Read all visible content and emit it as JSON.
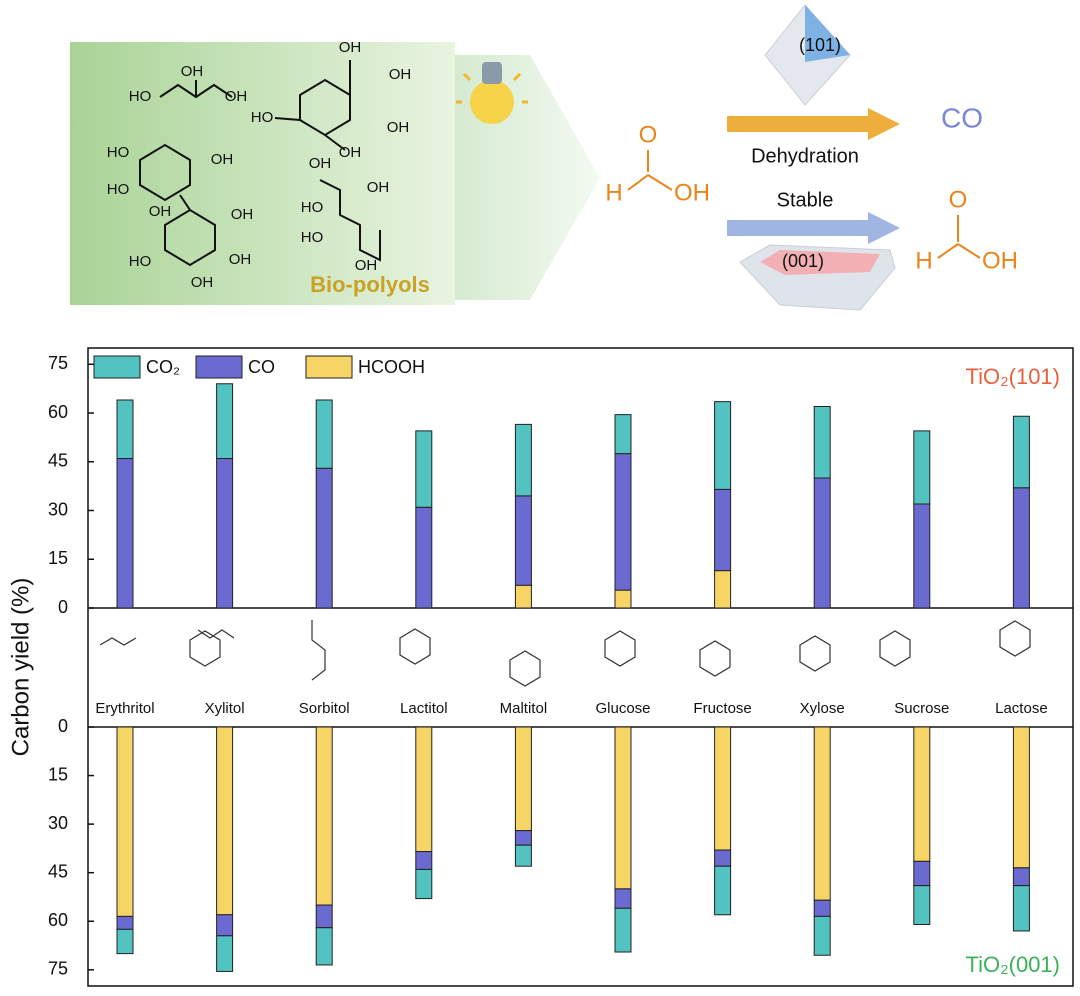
{
  "schematic": {
    "bio_label": "Bio-polyols",
    "molecule_labels": [
      "OH",
      "HO",
      "OH",
      "OH",
      "HO",
      "OH",
      "OH",
      "OH",
      "HO",
      "OH",
      "HO",
      "OH",
      "HO",
      "OH",
      "OH",
      "OH",
      "OH",
      "HO",
      "OH",
      "HO",
      "OH"
    ],
    "formic_left": {
      "O": "O",
      "H": "H",
      "OH": "OH"
    },
    "formic_right": {
      "O": "O",
      "H": "H",
      "OH": "OH"
    },
    "facet_top": "(101)",
    "facet_bottom": "(001)",
    "product_top": "CO",
    "path_top": "Dehydration",
    "path_bottom": "Stable"
  },
  "chart_data": [
    {
      "type": "bar",
      "stacked": true,
      "ylabel": "Carbon yield (%)",
      "subtitle": "TiO₂(101)",
      "subtitle_color": "#e8603c",
      "categories": [
        "Erythritol",
        "Xylitol",
        "Sorbitol",
        "Lactitol",
        "Maltitol",
        "Glucose",
        "Fructose",
        "Xylose",
        "Sucrose",
        "Lactose"
      ],
      "series": [
        {
          "name": "CO₂",
          "color": "#52c3c0",
          "values": [
            18,
            23,
            21,
            23.5,
            22,
            12,
            27,
            22,
            22.5,
            22
          ]
        },
        {
          "name": "CO",
          "color": "#6a6ad0",
          "values": [
            46,
            46,
            43,
            31,
            27.5,
            42,
            25,
            40,
            32,
            37
          ]
        },
        {
          "name": "HCOOH",
          "color": "#f6d465",
          "values": [
            0,
            0,
            0,
            0,
            7,
            5.5,
            11.5,
            0,
            0,
            0
          ]
        }
      ],
      "ylim": [
        0,
        80
      ],
      "yticks": [
        0,
        15,
        30,
        45,
        60,
        75
      ],
      "legend": "top-left"
    },
    {
      "type": "bar",
      "stacked": true,
      "inverted": true,
      "subtitle": "TiO₂(001)",
      "subtitle_color": "#3cb05a",
      "series": [
        {
          "name": "CO₂",
          "color": "#52c3c0",
          "values": [
            7.5,
            11,
            11.5,
            9,
            6.5,
            13.5,
            15,
            12,
            12,
            14
          ]
        },
        {
          "name": "CO",
          "color": "#6a6ad0",
          "values": [
            4,
            6.5,
            7,
            5.5,
            4.5,
            6,
            5,
            5,
            7.5,
            5.5
          ]
        },
        {
          "name": "HCOOH",
          "color": "#f6d465",
          "values": [
            58.5,
            58,
            55,
            38.5,
            32,
            50,
            38,
            53.5,
            41.5,
            43.5
          ]
        }
      ],
      "ylim": [
        0,
        80
      ],
      "yticks": [
        0,
        15,
        30,
        45,
        60,
        75
      ]
    }
  ]
}
